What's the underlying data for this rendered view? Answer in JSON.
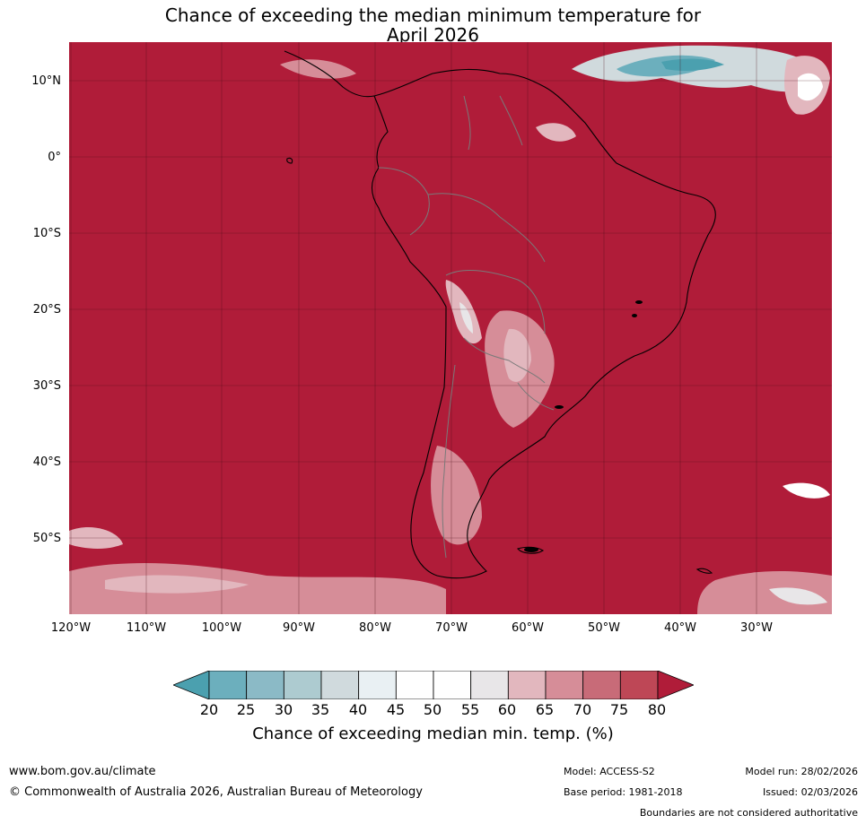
{
  "title": {
    "line1": "Chance of exceeding the median minimum temperature for",
    "line2": "April 2026"
  },
  "map": {
    "background_color": "#b01c39",
    "lat_labels": [
      "10°N",
      "0°",
      "10°S",
      "20°S",
      "30°S",
      "40°S",
      "50°S"
    ],
    "lon_labels": [
      "120°W",
      "110°W",
      "100°W",
      "90°W",
      "80°W",
      "70°W",
      "60°W",
      "50°W",
      "40°W",
      "30°W"
    ]
  },
  "colorbar": {
    "colors": [
      "#4ba0af",
      "#6cafbd",
      "#8bbac6",
      "#adcbd0",
      "#d0dadd",
      "#e9f0f3",
      "#ffffff",
      "#ffffff",
      "#e8e6e8",
      "#e2b7be",
      "#d68d98",
      "#c86b78",
      "#be4756",
      "#b01c39"
    ],
    "ticks": [
      "20",
      "25",
      "30",
      "35",
      "40",
      "45",
      "50",
      "55",
      "60",
      "65",
      "70",
      "75",
      "80"
    ],
    "label": "Chance of exceeding median min. temp. (%)"
  },
  "footer": {
    "url": "www.bom.gov.au/climate",
    "copyright": "© Commonwealth of Australia 2026, Australian Bureau of Meteorology",
    "model": "Model: ACCESS-S2",
    "base_period": "Base period: 1981-2018",
    "model_run": "Model run: 28/02/2026",
    "issued": "Issued: 02/03/2026",
    "disclaimer": "Boundaries are not considered authoritative"
  }
}
